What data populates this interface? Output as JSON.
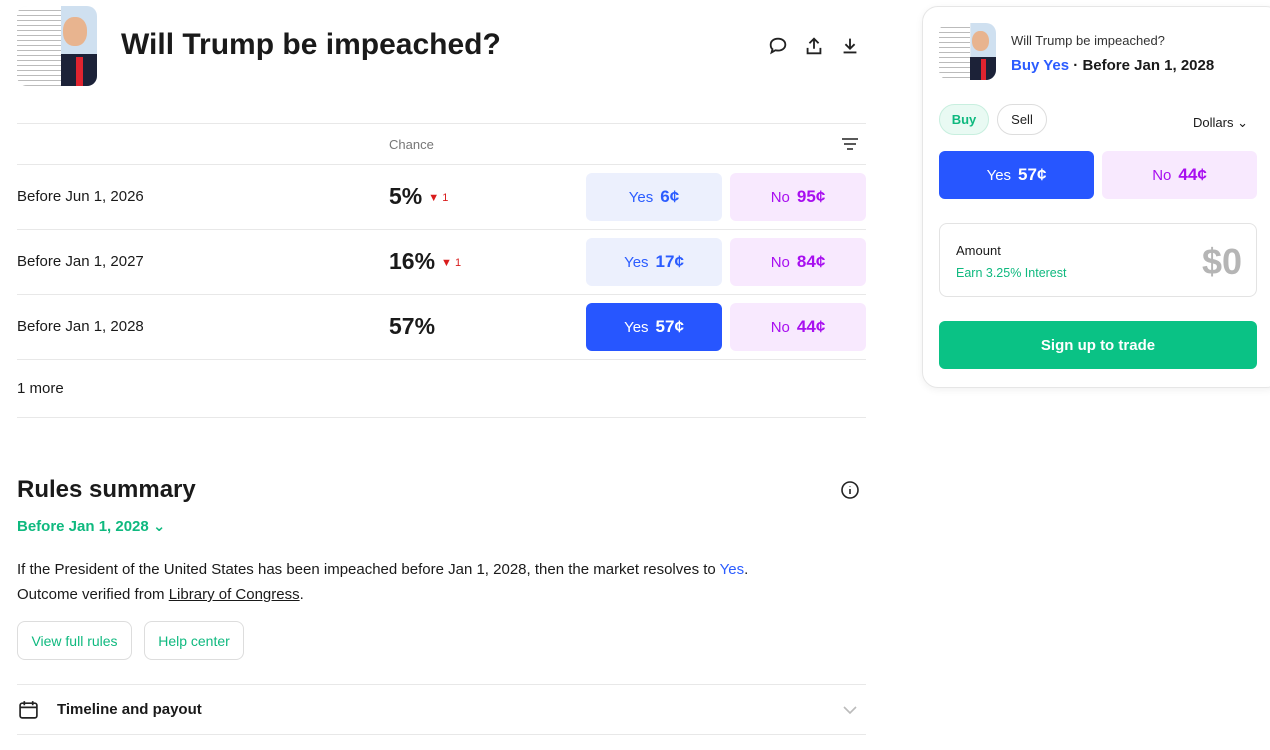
{
  "header": {
    "title": "Will Trump be impeached?",
    "icons": [
      "comment-icon",
      "share-icon",
      "download-icon"
    ]
  },
  "table": {
    "chance_header": "Chance",
    "sort_icon": "sort-icon",
    "rows": [
      {
        "label": "Before Jun 1, 2026",
        "chance": "5%",
        "delta": "1",
        "yes_label": "Yes",
        "yes_price": "6¢",
        "no_label": "No",
        "no_price": "95¢"
      },
      {
        "label": "Before Jan 1, 2027",
        "chance": "16%",
        "delta": "1",
        "yes_label": "Yes",
        "yes_price": "17¢",
        "no_label": "No",
        "no_price": "84¢"
      },
      {
        "label": "Before Jan 1, 2028",
        "chance": "57%",
        "yes_label": "Yes",
        "yes_price": "57¢",
        "no_label": "No",
        "no_price": "44¢"
      }
    ],
    "more": "1 more"
  },
  "rules": {
    "title": "Rules summary",
    "selected": "Before Jan 1, 2028",
    "text_pre": "If the President of the United States has been impeached before Jan 1, 2028, then the market resolves to ",
    "text_yes": "Yes",
    "text_post": ".",
    "verified_pre": "Outcome verified from ",
    "source": "Library of Congress",
    "verified_post": ".",
    "view_rules": "View full rules",
    "help": "Help center"
  },
  "timeline": {
    "label": "Timeline and payout"
  },
  "panel": {
    "question": "Will Trump be impeached?",
    "action": "Buy Yes",
    "sep": " · ",
    "market": "Before Jan 1, 2028",
    "buy": "Buy",
    "sell": "Sell",
    "unit": "Dollars",
    "yes_label": "Yes",
    "yes_price": "57¢",
    "no_label": "No",
    "no_price": "44¢",
    "amount_label": "Amount",
    "interest": "Earn 3.25% Interest",
    "amount": "$0",
    "signup": "Sign up to trade"
  },
  "colors": {
    "yes": "#2756ff",
    "no": "#a80ff0",
    "green": "#0ac285",
    "down": "#d91c1c"
  }
}
